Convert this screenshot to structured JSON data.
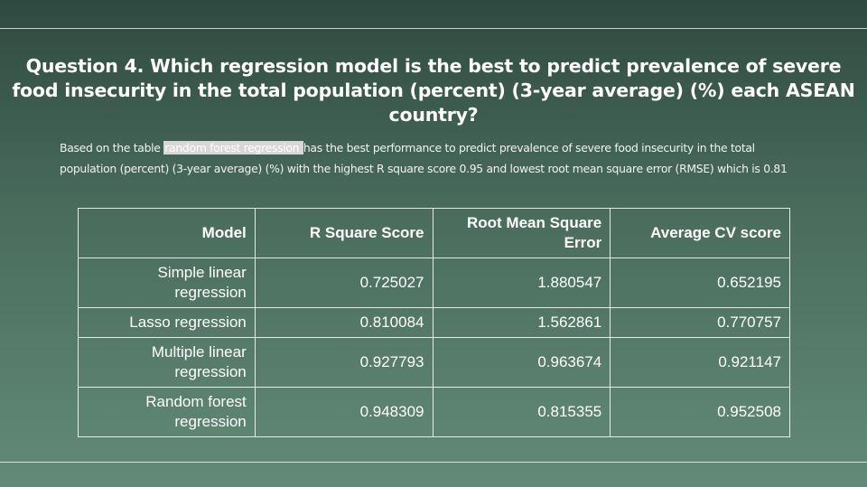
{
  "title": "Question 4. Which regression model is the best to predict prevalence of severe food insecurity in the total population (percent) (3-year average) (%) each ASEAN country?",
  "description": {
    "before": "Based on the table ",
    "highlight": " random forest regression ",
    "after": "has the best performance to predict prevalence of severe food insecurity in the total population (percent) (3-year average) (%) with the highest R square score 0.95 and lowest root mean square error (RMSE) which is 0.81"
  },
  "table": {
    "headers": [
      "Model",
      "R Square Score",
      "Root Mean Square Error",
      "Average CV score"
    ],
    "rows": [
      [
        "Simple linear regression",
        "0.725027",
        "1.880547",
        "0.652195"
      ],
      [
        "Lasso regression",
        "0.810084",
        "1.562861",
        "0.770757"
      ],
      [
        "Multiple linear regression",
        "0.927793",
        "0.963674",
        "0.921147"
      ],
      [
        "Random forest regression",
        "0.948309",
        "0.815355",
        "0.952508"
      ]
    ]
  },
  "colors": {
    "background_top": "#2f4a40",
    "background_bottom": "#638a78",
    "highlight": "#d7d7d7"
  }
}
